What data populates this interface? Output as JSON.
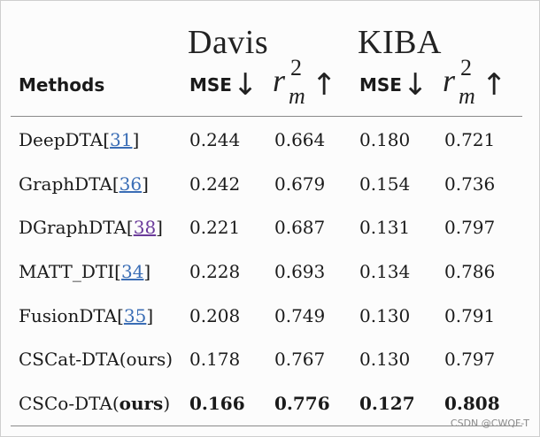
{
  "groups": {
    "davis": "Davis",
    "kiba": "KIBA"
  },
  "header": {
    "methods": "Methods",
    "mse": "MSE",
    "arrow_down": "↓",
    "arrow_up": "↑",
    "rm_base": "r",
    "rm_sup": "2",
    "rm_sub": "m"
  },
  "rows": [
    {
      "name": "DeepDTA[",
      "ref": "31",
      "close": "]",
      "v": [
        "0.244",
        "0.664",
        "0.180",
        "0.721"
      ]
    },
    {
      "name": "GraphDTA[",
      "ref": "36",
      "close": "]",
      "v": [
        "0.242",
        "0.679",
        "0.154",
        "0.736"
      ]
    },
    {
      "name": "DGraphDTA[",
      "ref": "38",
      "close": "]",
      "v": [
        "0.221",
        "0.687",
        "0.131",
        "0.797"
      ]
    },
    {
      "name": "MATT_DTI[",
      "ref": "34",
      "close": "]",
      "v": [
        "0.228",
        "0.693",
        "0.134",
        "0.786"
      ]
    },
    {
      "name": "FusionDTA[",
      "ref": "35",
      "close": "]",
      "v": [
        "0.208",
        "0.749",
        "0.130",
        "0.791"
      ]
    },
    {
      "name": "CSCat-DTA(ours)",
      "v": [
        "0.178",
        "0.767",
        "0.130",
        "0.797"
      ]
    },
    {
      "name": "CSCo-DTA(",
      "name_bold": "ours",
      "close": ")",
      "v": [
        "0.166",
        "0.776",
        "0.127",
        "0.808"
      ]
    }
  ],
  "watermark": "CSDN @CWQF-T"
}
